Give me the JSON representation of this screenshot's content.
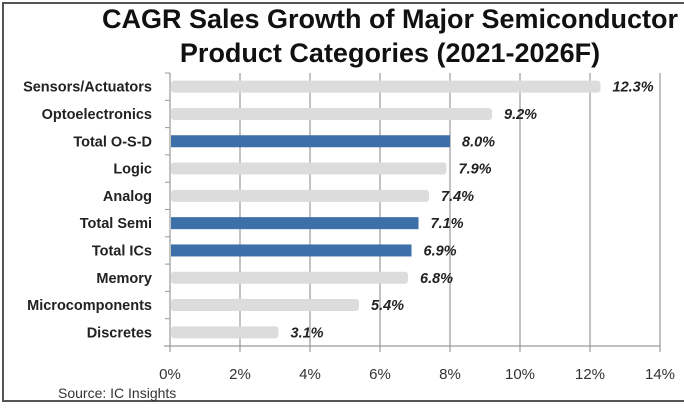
{
  "chart_data": {
    "type": "bar",
    "orientation": "horizontal",
    "title": "CAGR Sales Growth of Major Semiconductor Product Categories (2021-2026F)",
    "title_lines": [
      "CAGR Sales Growth of Major Semiconductor",
      "Product Categories (2021-2026F)"
    ],
    "categories": [
      "Sensors/Actuators",
      "Optoelectronics",
      "Total O-S-D",
      "Logic",
      "Analog",
      "Total Semi",
      "Total ICs",
      "Memory",
      "Microcomponents",
      "Discretes"
    ],
    "values": [
      12.3,
      9.2,
      8.0,
      7.9,
      7.4,
      7.1,
      6.9,
      6.8,
      5.4,
      3.1
    ],
    "value_labels": [
      "12.3%",
      "9.2%",
      "8.0%",
      "7.9%",
      "7.4%",
      "7.1%",
      "6.9%",
      "6.8%",
      "5.4%",
      "3.1%"
    ],
    "highlighted": [
      false,
      false,
      true,
      false,
      false,
      true,
      true,
      false,
      false,
      false
    ],
    "xlabel": "",
    "ylabel": "",
    "xlim": [
      0,
      14
    ],
    "x_ticks": [
      0,
      2,
      4,
      6,
      8,
      10,
      12,
      14
    ],
    "x_tick_labels": [
      "0%",
      "2%",
      "4%",
      "6%",
      "8%",
      "10%",
      "12%",
      "14%"
    ],
    "grid": true,
    "legend": "none",
    "colors": {
      "highlight": "#3d6fa8",
      "default": "#dcdcdc",
      "grid": "#9a9a9a"
    }
  },
  "source": "Source:  IC Insights"
}
